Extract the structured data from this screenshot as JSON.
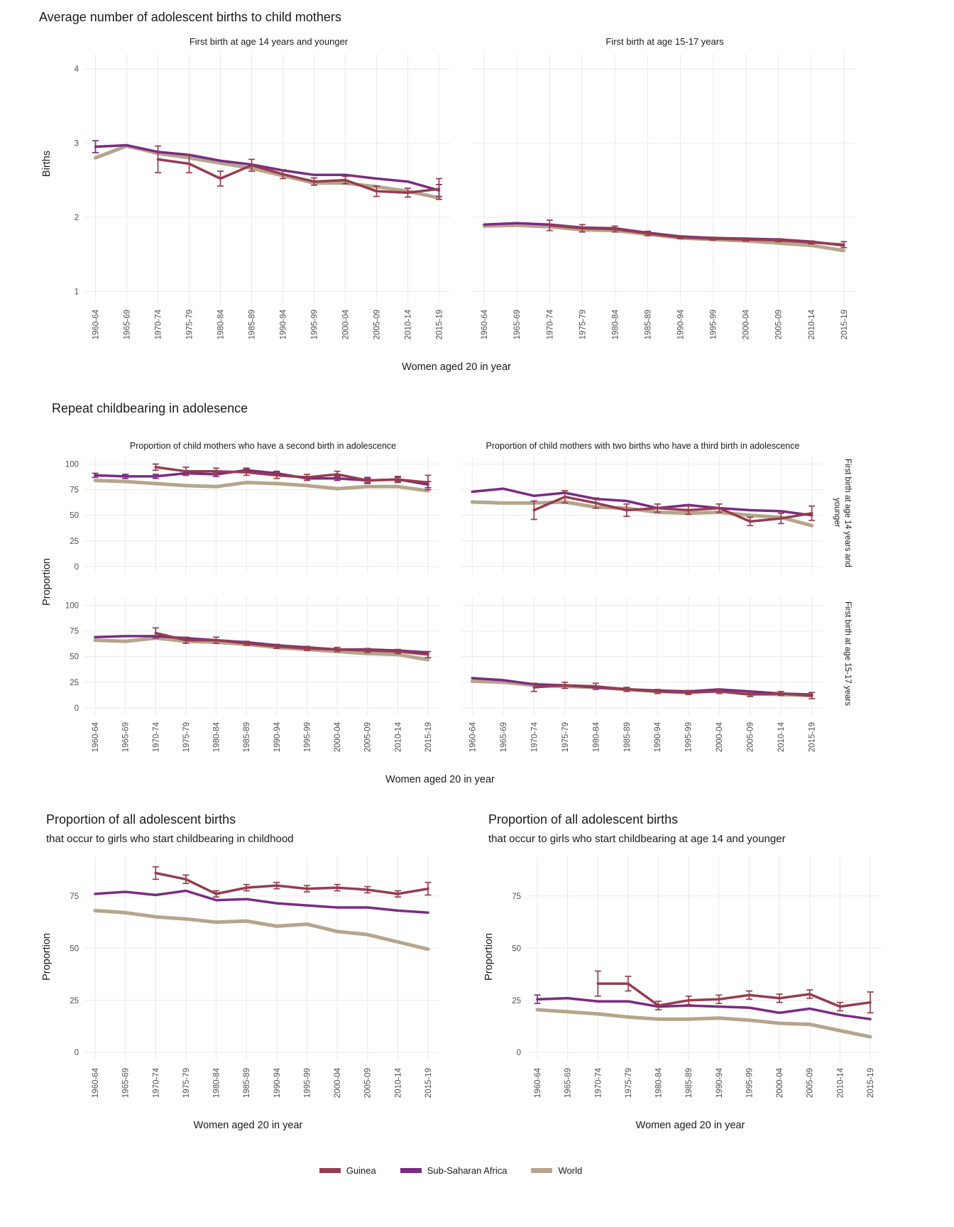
{
  "colors": {
    "guinea": "#963c4e",
    "ssa": "#7b2b82",
    "world": "#b5a58c",
    "grid": "#ebebeb",
    "tick_text": "#4d4d4d",
    "title_text": "#1a1a1a"
  },
  "legend": {
    "items": [
      {
        "label": "Guinea",
        "color_key": "guinea"
      },
      {
        "label": "Sub-Saharan Africa",
        "color_key": "ssa"
      },
      {
        "label": "World",
        "color_key": "world"
      }
    ]
  },
  "sections": {
    "births": {
      "title": "Average number of adolescent births to child mothers",
      "ylabel": "Births",
      "xlabel": "Women aged 20 in year"
    },
    "repeat": {
      "title": "Repeat childbearing in adolesence",
      "ylabel": "Proportion",
      "xlabel": "Women aged 20 in year",
      "col_titles": [
        "Proportion of child mothers who have a second birth in adolescence",
        "Proportion of child mothers with two births who have a third birth in adolescence"
      ],
      "row_labels": [
        "First birth at age 14 years and younger",
        "First birth at age 15-17 years"
      ]
    },
    "prop_left": {
      "title": "Proportion of all adolescent births",
      "subtitle": "that occur to girls who start childbearing in childhood",
      "ylabel": "Proportion",
      "xlabel": "Women aged 20 in year"
    },
    "prop_right": {
      "title": "Proportion of all adolescent births",
      "subtitle": "that occur to girls who start childbearing at age 14 and younger",
      "ylabel": "Proportion",
      "xlabel": "Women aged 20 in year"
    }
  },
  "chart_data": [
    {
      "id": "births-14",
      "type": "line",
      "title": "First birth at age 14 years and younger",
      "categories": [
        "1960-64",
        "1965-69",
        "1970-74",
        "1975-79",
        "1980-84",
        "1985-89",
        "1990-94",
        "1995-99",
        "2000-04",
        "2005-09",
        "2010-14",
        "2015-19"
      ],
      "ylim": [
        0.85,
        4.2
      ],
      "yticks": [
        1,
        2,
        3,
        4
      ],
      "show_y_tick_labels": true,
      "show_x_tick_labels": true,
      "series": [
        {
          "name": "World",
          "color_key": "world",
          "line_width": 5,
          "values": [
            2.8,
            2.96,
            2.86,
            2.8,
            2.73,
            2.66,
            2.56,
            2.46,
            2.46,
            2.41,
            2.35,
            2.26
          ]
        },
        {
          "name": "Sub-Saharan Africa",
          "color_key": "ssa",
          "line_width": 3.5,
          "values": [
            2.95,
            2.97,
            2.88,
            2.84,
            2.76,
            2.71,
            2.63,
            2.57,
            2.57,
            2.52,
            2.48,
            2.36
          ],
          "errors": [
            0.08,
            null,
            null,
            null,
            null,
            null,
            null,
            null,
            null,
            null,
            null,
            0.08
          ]
        },
        {
          "name": "Guinea",
          "color_key": "guinea",
          "line_width": 3.5,
          "values": [
            null,
            null,
            2.78,
            2.72,
            2.52,
            2.7,
            2.58,
            2.48,
            2.5,
            2.35,
            2.33,
            2.38
          ],
          "errors": [
            null,
            null,
            0.18,
            0.12,
            0.1,
            0.08,
            0.06,
            0.05,
            0.05,
            0.07,
            0.06,
            0.14
          ]
        }
      ]
    },
    {
      "id": "births-1517",
      "type": "line",
      "title": "First birth at age 15-17 years",
      "categories": [
        "1960-64",
        "1965-69",
        "1970-74",
        "1975-79",
        "1980-84",
        "1985-89",
        "1990-94",
        "1995-99",
        "2000-04",
        "2005-09",
        "2010-14",
        "2015-19"
      ],
      "ylim": [
        0.85,
        4.2
      ],
      "yticks": [
        1,
        2,
        3,
        4
      ],
      "show_y_tick_labels": false,
      "show_x_tick_labels": true,
      "series": [
        {
          "name": "World",
          "color_key": "world",
          "line_width": 5,
          "values": [
            1.88,
            1.89,
            1.87,
            1.83,
            1.82,
            1.77,
            1.72,
            1.7,
            1.68,
            1.65,
            1.62,
            1.55
          ]
        },
        {
          "name": "Sub-Saharan Africa",
          "color_key": "ssa",
          "line_width": 3.5,
          "values": [
            1.9,
            1.92,
            1.9,
            1.86,
            1.85,
            1.79,
            1.74,
            1.72,
            1.71,
            1.7,
            1.67,
            1.62
          ]
        },
        {
          "name": "Guinea",
          "color_key": "guinea",
          "line_width": 3.5,
          "values": [
            null,
            null,
            1.89,
            1.85,
            1.84,
            1.78,
            1.73,
            1.71,
            1.7,
            1.69,
            1.66,
            1.63
          ],
          "errors": [
            null,
            null,
            0.07,
            0.05,
            0.04,
            0.03,
            0.02,
            0.02,
            0.02,
            0.02,
            0.02,
            0.04
          ]
        }
      ]
    },
    {
      "id": "second-14",
      "type": "line",
      "title": "Proportion of child mothers who have a second birth in adolescence",
      "facet_row": "First birth at age 14 years and younger",
      "categories": [
        "1960-64",
        "1965-69",
        "1970-74",
        "1975-79",
        "1980-84",
        "1985-89",
        "1990-94",
        "1995-99",
        "2000-04",
        "2005-09",
        "2010-14",
        "2015-19"
      ],
      "ylim": [
        -7,
        108
      ],
      "yticks": [
        0,
        25,
        50,
        75,
        100
      ],
      "show_y_tick_labels": true,
      "show_x_tick_labels": false,
      "series": [
        {
          "name": "World",
          "color_key": "world",
          "line_width": 5,
          "values": [
            84,
            83,
            81,
            79,
            78,
            82,
            81,
            79,
            76,
            78,
            78,
            74
          ]
        },
        {
          "name": "Sub-Saharan Africa",
          "color_key": "ssa",
          "line_width": 3.5,
          "values": [
            89,
            88,
            88,
            91,
            90,
            94,
            91,
            86,
            86,
            84,
            85,
            80
          ],
          "errors": [
            2,
            2,
            2,
            2,
            2,
            2,
            2,
            2,
            2,
            2,
            2,
            3
          ]
        },
        {
          "name": "Guinea",
          "color_key": "guinea",
          "line_width": 3.5,
          "values": [
            null,
            null,
            97,
            93,
            93,
            92,
            89,
            87,
            90,
            84,
            85,
            82
          ],
          "errors": [
            null,
            null,
            3,
            4,
            3,
            3,
            3,
            3,
            3,
            3,
            3,
            7
          ]
        }
      ]
    },
    {
      "id": "third-14",
      "type": "line",
      "title": "Proportion of child mothers with two births who have a third birth in adolescence",
      "facet_row": "First birth at age 14 years and younger",
      "categories": [
        "1960-64",
        "1965-69",
        "1970-74",
        "1975-79",
        "1980-84",
        "1985-89",
        "1990-94",
        "1995-99",
        "2000-04",
        "2005-09",
        "2010-14",
        "2015-19"
      ],
      "ylim": [
        -7,
        108
      ],
      "yticks": [
        0,
        25,
        50,
        75,
        100
      ],
      "show_y_tick_labels": false,
      "show_x_tick_labels": false,
      "series": [
        {
          "name": "World",
          "color_key": "world",
          "line_width": 5,
          "values": [
            63,
            62,
            62,
            63,
            58,
            57,
            53,
            52,
            53,
            50,
            48,
            40
          ]
        },
        {
          "name": "Sub-Saharan Africa",
          "color_key": "ssa",
          "line_width": 3.5,
          "values": [
            73,
            76,
            69,
            72,
            66,
            64,
            57,
            60,
            57,
            55,
            54,
            50
          ]
        },
        {
          "name": "Guinea",
          "color_key": "guinea",
          "line_width": 3.5,
          "values": [
            null,
            null,
            55,
            68,
            62,
            55,
            57,
            55,
            57,
            44,
            47,
            52
          ],
          "errors": [
            null,
            null,
            9,
            6,
            5,
            6,
            4,
            4,
            4,
            4,
            5,
            7
          ]
        }
      ]
    },
    {
      "id": "second-1517",
      "type": "line",
      "title": "Proportion of child mothers who have a second birth in adolescence",
      "facet_row": "First birth at age 15-17 years",
      "categories": [
        "1960-64",
        "1965-69",
        "1970-74",
        "1975-79",
        "1980-84",
        "1985-89",
        "1990-94",
        "1995-99",
        "2000-04",
        "2005-09",
        "2010-14",
        "2015-19"
      ],
      "ylim": [
        -7,
        108
      ],
      "yticks": [
        0,
        25,
        50,
        75,
        100
      ],
      "show_y_tick_labels": true,
      "show_x_tick_labels": true,
      "series": [
        {
          "name": "World",
          "color_key": "world",
          "line_width": 5,
          "values": [
            66,
            65,
            68,
            65,
            64,
            62,
            59,
            57,
            55,
            53,
            52,
            47
          ]
        },
        {
          "name": "Sub-Saharan Africa",
          "color_key": "ssa",
          "line_width": 3.5,
          "values": [
            69,
            70,
            70,
            68,
            66,
            64,
            61,
            59,
            57,
            57,
            56,
            54
          ]
        },
        {
          "name": "Guinea",
          "color_key": "guinea",
          "line_width": 3.5,
          "values": [
            null,
            null,
            73,
            66,
            66,
            63,
            60,
            58,
            57,
            56,
            55,
            52
          ],
          "errors": [
            null,
            null,
            5,
            3,
            3,
            2,
            2,
            2,
            2,
            2,
            2,
            3
          ]
        }
      ]
    },
    {
      "id": "third-1517",
      "type": "line",
      "title": "Proportion of child mothers with two births who have a third birth in adolescence",
      "facet_row": "First birth at age 15-17 years",
      "categories": [
        "1960-64",
        "1965-69",
        "1970-74",
        "1975-79",
        "1980-84",
        "1985-89",
        "1990-94",
        "1995-99",
        "2000-04",
        "2005-09",
        "2010-14",
        "2015-19"
      ],
      "ylim": [
        -7,
        108
      ],
      "yticks": [
        0,
        25,
        50,
        75,
        100
      ],
      "show_y_tick_labels": false,
      "show_x_tick_labels": true,
      "series": [
        {
          "name": "World",
          "color_key": "world",
          "line_width": 5,
          "values": [
            26,
            25,
            22,
            21,
            20,
            18,
            16,
            15,
            17,
            14,
            13,
            12
          ]
        },
        {
          "name": "Sub-Saharan Africa",
          "color_key": "ssa",
          "line_width": 3.5,
          "values": [
            29,
            27,
            23,
            22,
            20,
            18,
            17,
            16,
            18,
            16,
            14,
            13
          ]
        },
        {
          "name": "Guinea",
          "color_key": "guinea",
          "line_width": 3.5,
          "values": [
            null,
            null,
            20,
            22,
            21,
            18,
            16,
            15,
            16,
            13,
            14,
            12
          ],
          "errors": [
            null,
            null,
            4,
            3,
            3,
            2,
            2,
            2,
            2,
            2,
            2,
            3
          ]
        }
      ]
    },
    {
      "id": "prop-childhood",
      "type": "line",
      "title": "Proportion of all adolescent births that occur to girls who start childbearing in childhood",
      "categories": [
        "1960-64",
        "1965-69",
        "1970-74",
        "1975-79",
        "1980-84",
        "1985-89",
        "1990-94",
        "1995-99",
        "2000-04",
        "2005-09",
        "2010-14",
        "2015-19"
      ],
      "ylim": [
        -4,
        94
      ],
      "yticks": [
        0,
        25,
        50,
        75
      ],
      "show_y_tick_labels": true,
      "show_x_tick_labels": true,
      "series": [
        {
          "name": "World",
          "color_key": "world",
          "line_width": 5,
          "values": [
            68,
            67,
            65,
            64,
            62.5,
            63,
            60.5,
            61.5,
            58,
            56.5,
            53,
            49.5
          ]
        },
        {
          "name": "Sub-Saharan Africa",
          "color_key": "ssa",
          "line_width": 3.5,
          "values": [
            76,
            77,
            75.5,
            77.5,
            73,
            73.5,
            71.5,
            70.5,
            69.5,
            69.5,
            68,
            67
          ]
        },
        {
          "name": "Guinea",
          "color_key": "guinea",
          "line_width": 3.5,
          "values": [
            null,
            null,
            86,
            83,
            76,
            79,
            80,
            78.5,
            79,
            78,
            76,
            78.5
          ],
          "errors": [
            null,
            null,
            3,
            2,
            1.5,
            1.5,
            1.5,
            1.5,
            1.5,
            1.5,
            1.5,
            3
          ]
        }
      ]
    },
    {
      "id": "prop-14",
      "type": "line",
      "title": "Proportion of all adolescent births that occur to girls who start childbearing at age 14 and younger",
      "categories": [
        "1960-64",
        "1965-69",
        "1970-74",
        "1975-79",
        "1980-84",
        "1985-89",
        "1990-94",
        "1995-99",
        "2000-04",
        "2005-09",
        "2010-14",
        "2015-19"
      ],
      "ylim": [
        -4,
        94
      ],
      "yticks": [
        0,
        25,
        50,
        75
      ],
      "show_y_tick_labels": true,
      "show_x_tick_labels": true,
      "series": [
        {
          "name": "World",
          "color_key": "world",
          "line_width": 5,
          "values": [
            20.5,
            19.5,
            18.5,
            17,
            16,
            16,
            16.5,
            15.5,
            14,
            13.5,
            10.5,
            7.5
          ]
        },
        {
          "name": "Sub-Saharan Africa",
          "color_key": "ssa",
          "line_width": 3.5,
          "values": [
            25.5,
            26,
            24.5,
            24.5,
            22,
            22.5,
            22,
            21.5,
            19,
            21,
            18,
            16
          ],
          "errors": [
            2,
            null,
            null,
            null,
            null,
            null,
            null,
            null,
            null,
            null,
            null,
            null
          ]
        },
        {
          "name": "Guinea",
          "color_key": "guinea",
          "line_width": 3.5,
          "values": [
            null,
            null,
            33,
            33,
            22.5,
            25,
            25.5,
            27.5,
            26,
            28,
            22,
            24
          ],
          "errors": [
            null,
            null,
            6,
            3.5,
            2,
            2,
            2,
            2,
            2,
            2,
            2,
            5
          ]
        }
      ]
    }
  ]
}
